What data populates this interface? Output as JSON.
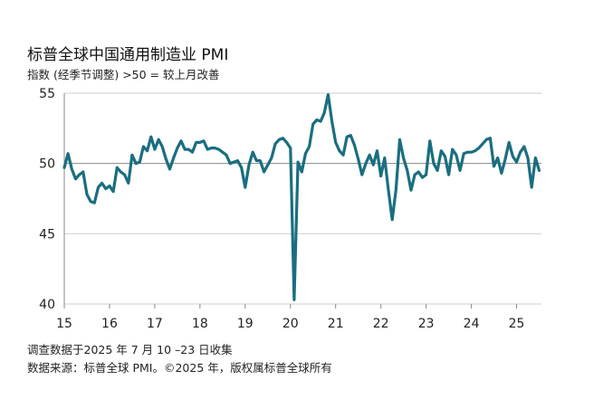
{
  "header": {
    "title": "标普全球中国通用制造业 PMI",
    "subtitle": "指数 (经季节调整) >50 = 较上月改善"
  },
  "footer": {
    "survey_note": "调查数据于2025 年 7 月 10 –23 日收集",
    "source_note": "数据来源：标普全球 PMI。©2025 年，版权属标普全球所有"
  },
  "chart_data": {
    "type": "line",
    "title": "标普全球中国通用制造业 PMI",
    "subtitle": "指数 (经季节调整) >50 = 较上月改善",
    "xlabel": "",
    "ylabel": "",
    "ylim": [
      40,
      55
    ],
    "xlim": [
      2015.0,
      2025.55
    ],
    "yticks": [
      40,
      45,
      50,
      55
    ],
    "xticks": [
      {
        "value": 2015,
        "label": "15"
      },
      {
        "value": 2016,
        "label": "16"
      },
      {
        "value": 2017,
        "label": "17"
      },
      {
        "value": 2018,
        "label": "18"
      },
      {
        "value": 2019,
        "label": "19"
      },
      {
        "value": 2020,
        "label": "20"
      },
      {
        "value": 2021,
        "label": "21"
      },
      {
        "value": 2022,
        "label": "22"
      },
      {
        "value": 2023,
        "label": "23"
      },
      {
        "value": 2024,
        "label": "24"
      },
      {
        "value": 2025,
        "label": "25"
      }
    ],
    "grid": "horizontal",
    "line_color": "#1a6e80",
    "reference_line": 50,
    "series": [
      {
        "name": "",
        "x": [
          2015.0,
          2015.083,
          2015.167,
          2015.25,
          2015.333,
          2015.417,
          2015.5,
          2015.583,
          2015.667,
          2015.75,
          2015.833,
          2015.917,
          2016.0,
          2016.083,
          2016.167,
          2016.25,
          2016.333,
          2016.417,
          2016.5,
          2016.583,
          2016.667,
          2016.75,
          2016.833,
          2016.917,
          2017.0,
          2017.083,
          2017.167,
          2017.25,
          2017.333,
          2017.417,
          2017.5,
          2017.583,
          2017.667,
          2017.75,
          2017.833,
          2017.917,
          2018.0,
          2018.083,
          2018.167,
          2018.25,
          2018.333,
          2018.417,
          2018.5,
          2018.583,
          2018.667,
          2018.75,
          2018.833,
          2018.917,
          2019.0,
          2019.083,
          2019.167,
          2019.25,
          2019.333,
          2019.417,
          2019.5,
          2019.583,
          2019.667,
          2019.75,
          2019.833,
          2019.917,
          2020.0,
          2020.083,
          2020.167,
          2020.25,
          2020.333,
          2020.417,
          2020.5,
          2020.583,
          2020.667,
          2020.75,
          2020.833,
          2020.917,
          2021.0,
          2021.083,
          2021.167,
          2021.25,
          2021.333,
          2021.417,
          2021.5,
          2021.583,
          2021.667,
          2021.75,
          2021.833,
          2021.917,
          2022.0,
          2022.083,
          2022.167,
          2022.25,
          2022.333,
          2022.417,
          2022.5,
          2022.583,
          2022.667,
          2022.75,
          2022.833,
          2022.917,
          2023.0,
          2023.083,
          2023.167,
          2023.25,
          2023.333,
          2023.417,
          2023.5,
          2023.583,
          2023.667,
          2023.75,
          2023.833,
          2023.917,
          2024.0,
          2024.083,
          2024.167,
          2024.25,
          2024.333,
          2024.417,
          2024.5,
          2024.583,
          2024.667,
          2024.75,
          2024.833,
          2024.917,
          2025.0,
          2025.083,
          2025.167,
          2025.25,
          2025.333,
          2025.417,
          2025.5
        ],
        "values": [
          49.7,
          50.7,
          49.6,
          48.9,
          49.2,
          49.4,
          47.8,
          47.3,
          47.2,
          48.3,
          48.6,
          48.2,
          48.4,
          48.0,
          49.7,
          49.4,
          49.2,
          48.6,
          50.6,
          50.0,
          50.1,
          51.2,
          50.9,
          51.9,
          51.0,
          51.7,
          51.2,
          50.3,
          49.6,
          50.4,
          51.1,
          51.6,
          51.0,
          51.0,
          50.8,
          51.5,
          51.5,
          51.6,
          51.0,
          51.1,
          51.1,
          51.0,
          50.8,
          50.6,
          50.0,
          50.1,
          50.2,
          49.7,
          48.3,
          49.9,
          50.8,
          50.2,
          50.2,
          49.4,
          49.9,
          50.4,
          51.4,
          51.7,
          51.8,
          51.5,
          51.1,
          40.3,
          50.1,
          49.4,
          50.7,
          51.2,
          52.8,
          53.1,
          53.0,
          53.6,
          54.9,
          53.0,
          51.5,
          50.9,
          50.6,
          51.9,
          52.0,
          51.3,
          50.3,
          49.2,
          50.0,
          50.6,
          49.9,
          50.9,
          49.1,
          50.4,
          48.1,
          46.0,
          48.1,
          51.7,
          50.4,
          49.5,
          48.1,
          49.2,
          49.4,
          49.0,
          49.2,
          51.6,
          50.0,
          49.5,
          50.9,
          50.5,
          49.2,
          51.0,
          50.6,
          49.5,
          50.7,
          50.8,
          50.8,
          50.9,
          51.1,
          51.4,
          51.7,
          51.8,
          49.8,
          50.4,
          49.3,
          50.3,
          51.5,
          50.5,
          50.1,
          50.8,
          51.2,
          50.4,
          48.3,
          50.4,
          49.5
        ]
      }
    ]
  }
}
